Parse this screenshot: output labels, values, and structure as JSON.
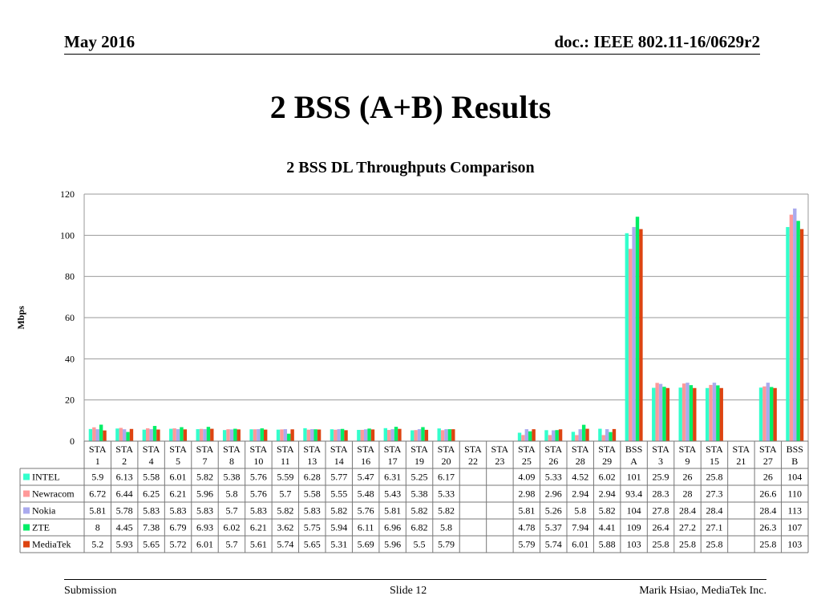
{
  "header": {
    "date": "May 2016",
    "doc": "doc.: IEEE 802.11-16/0629r2"
  },
  "slide": {
    "title": "2 BSS (A+B) Results"
  },
  "footer": {
    "left": "Submission",
    "center": "Slide 12",
    "right": "Marik Hsiao, MediaTek Inc."
  },
  "chart_data": {
    "type": "bar",
    "title": "2 BSS DL Throughputs Comparison",
    "ylabel": "Mbps",
    "ylim": [
      0,
      120
    ],
    "yticks": [
      0,
      20,
      40,
      60,
      80,
      100,
      120
    ],
    "grid": true,
    "legend": "table-below",
    "categories": [
      [
        "STA",
        "1"
      ],
      [
        "STA",
        "2"
      ],
      [
        "STA",
        "4"
      ],
      [
        "STA",
        "5"
      ],
      [
        "STA",
        "7"
      ],
      [
        "STA",
        "8"
      ],
      [
        "STA",
        "10"
      ],
      [
        "STA",
        "11"
      ],
      [
        "STA",
        "13"
      ],
      [
        "STA",
        "14"
      ],
      [
        "STA",
        "16"
      ],
      [
        "STA",
        "17"
      ],
      [
        "STA",
        "19"
      ],
      [
        "STA",
        "20"
      ],
      [
        "STA",
        "22"
      ],
      [
        "STA",
        "23"
      ],
      [
        "STA",
        "25"
      ],
      [
        "STA",
        "26"
      ],
      [
        "STA",
        "28"
      ],
      [
        "STA",
        "29"
      ],
      [
        "BSS",
        "A"
      ],
      [
        "STA",
        "3"
      ],
      [
        "STA",
        "9"
      ],
      [
        "STA",
        "15"
      ],
      [
        "STA",
        "21"
      ],
      [
        "STA",
        "27"
      ],
      [
        "BSS",
        "B"
      ]
    ],
    "series": [
      {
        "name": "INTEL",
        "color": "#33ffcc",
        "values": [
          5.9,
          6.13,
          5.58,
          6.01,
          5.82,
          5.38,
          5.76,
          5.59,
          6.28,
          5.77,
          5.47,
          6.31,
          5.25,
          6.17,
          null,
          null,
          4.09,
          5.33,
          4.52,
          6.02,
          101,
          25.9,
          26,
          25.8,
          null,
          26,
          104
        ]
      },
      {
        "name": "Newracom",
        "color": "#ff9999",
        "values": [
          6.72,
          6.44,
          6.25,
          6.21,
          5.96,
          5.8,
          5.76,
          5.7,
          5.58,
          5.55,
          5.48,
          5.43,
          5.38,
          5.33,
          null,
          null,
          2.98,
          2.96,
          2.94,
          2.94,
          93.4,
          28.3,
          28,
          27.3,
          null,
          26.6,
          110
        ]
      },
      {
        "name": "Nokia",
        "color": "#aaaaee",
        "values": [
          5.81,
          5.78,
          5.83,
          5.83,
          5.83,
          5.7,
          5.83,
          5.82,
          5.83,
          5.82,
          5.76,
          5.81,
          5.82,
          5.82,
          null,
          null,
          5.81,
          5.26,
          5.8,
          5.82,
          104,
          27.8,
          28.4,
          28.4,
          null,
          28.4,
          113
        ]
      },
      {
        "name": "ZTE",
        "color": "#00ee66",
        "values": [
          8,
          4.45,
          7.38,
          6.79,
          6.93,
          6.02,
          6.21,
          3.62,
          5.75,
          5.94,
          6.11,
          6.96,
          6.82,
          5.8,
          null,
          null,
          4.78,
          5.37,
          7.94,
          4.41,
          109,
          26.4,
          27.2,
          27.1,
          null,
          26.3,
          107
        ]
      },
      {
        "name": "MediaTek",
        "color": "#dd4411",
        "values": [
          5.2,
          5.93,
          5.65,
          5.72,
          6.01,
          5.7,
          5.61,
          5.74,
          5.65,
          5.31,
          5.69,
          5.96,
          5.5,
          5.79,
          null,
          null,
          5.79,
          5.74,
          6.01,
          5.88,
          103,
          25.8,
          25.8,
          25.8,
          null,
          25.8,
          103
        ]
      }
    ]
  }
}
